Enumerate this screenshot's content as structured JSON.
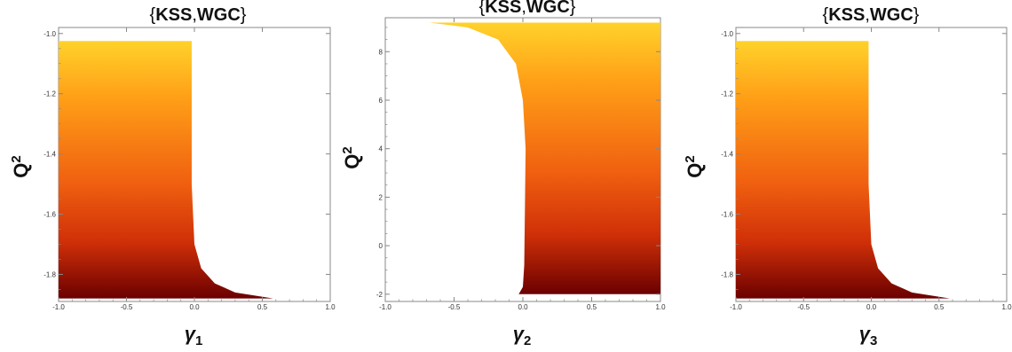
{
  "colors": {
    "top": "#ffd22a",
    "mid_upper": "#ff9f17",
    "mid": "#f06010",
    "mid_lower": "#d03008",
    "bottom": "#6b0000",
    "frame": "#888888",
    "background": "#ffffff"
  },
  "chart_data": [
    {
      "type": "area",
      "title_parts": [
        "{",
        "KSS",
        ",",
        "WGC",
        "}"
      ],
      "xlabel": "γ",
      "xlabel_sub": "1",
      "ylabel": "Q",
      "ylabel_sup": "2",
      "xlim": [
        -1.0,
        1.0
      ],
      "ylim": [
        -1.89,
        -0.98
      ],
      "xticks": [
        -1.0,
        -0.5,
        0.0,
        0.5,
        1.0
      ],
      "xtick_labels": [
        "-1.0",
        "-0.5",
        "0.0",
        "0.5",
        "1.0"
      ],
      "yticks": [
        -1.8,
        -1.6,
        -1.4,
        -1.2,
        -1.0
      ],
      "ytick_labels": [
        "-1.8",
        "-1.6",
        "-1.4",
        "-1.2",
        "-1.0"
      ],
      "y_range_filled": [
        -1.88,
        -1.025
      ],
      "x_left": -1.0,
      "right_boundary": [
        {
          "y": -1.025,
          "x": -0.02
        },
        {
          "y": -1.5,
          "x": -0.02
        },
        {
          "y": -1.7,
          "x": 0.0
        },
        {
          "y": -1.78,
          "x": 0.05
        },
        {
          "y": -1.83,
          "x": 0.15
        },
        {
          "y": -1.86,
          "x": 0.3
        },
        {
          "y": -1.88,
          "x": 0.58
        }
      ],
      "color_gradient": "y"
    },
    {
      "type": "area",
      "title_parts": [
        "{",
        "KSS",
        ",",
        "WGC",
        "}"
      ],
      "xlabel": "γ",
      "xlabel_sub": "2",
      "ylabel": "Q",
      "ylabel_sup": "2",
      "xlim": [
        -1.0,
        1.0
      ],
      "ylim": [
        -2.3,
        9.4
      ],
      "xticks": [
        -1.0,
        -0.5,
        0.0,
        0.5,
        1.0
      ],
      "xtick_labels": [
        "-1.0",
        "-0.5",
        "0.0",
        "0.5",
        "1.0"
      ],
      "yticks": [
        -2,
        0,
        2,
        4,
        6,
        8
      ],
      "ytick_labels": [
        "-2",
        "0",
        "2",
        "4",
        "6",
        "8"
      ],
      "y_range_filled": [
        -2.0,
        9.2
      ],
      "x_right": 1.0,
      "left_boundary": [
        {
          "y": -2.0,
          "x": -0.03
        },
        {
          "y": -1.7,
          "x": 0.0
        },
        {
          "y": -0.8,
          "x": 0.01
        },
        {
          "y": 4.0,
          "x": 0.02
        },
        {
          "y": 6.0,
          "x": 0.0
        },
        {
          "y": 7.5,
          "x": -0.05
        },
        {
          "y": 8.5,
          "x": -0.18
        },
        {
          "y": 9.0,
          "x": -0.4
        },
        {
          "y": 9.2,
          "x": -0.68
        }
      ],
      "color_gradient": "y"
    },
    {
      "type": "area",
      "title_parts": [
        "{",
        "KSS",
        ",",
        "WGC",
        "}"
      ],
      "xlabel": "γ",
      "xlabel_sub": "3",
      "ylabel": "Q",
      "ylabel_sup": "2",
      "xlim": [
        -1.0,
        1.0
      ],
      "ylim": [
        -1.89,
        -0.98
      ],
      "xticks": [
        -1.0,
        -0.5,
        0.0,
        0.5,
        1.0
      ],
      "xtick_labels": [
        "-1.0",
        "-0.5",
        "0.0",
        "0.5",
        "1.0"
      ],
      "yticks": [
        -1.8,
        -1.6,
        -1.4,
        -1.2,
        -1.0
      ],
      "ytick_labels": [
        "-1.8",
        "-1.6",
        "-1.4",
        "-1.2",
        "-1.0"
      ],
      "y_range_filled": [
        -1.88,
        -1.025
      ],
      "x_left": -1.0,
      "right_boundary": [
        {
          "y": -1.025,
          "x": -0.02
        },
        {
          "y": -1.5,
          "x": -0.02
        },
        {
          "y": -1.7,
          "x": 0.0
        },
        {
          "y": -1.78,
          "x": 0.05
        },
        {
          "y": -1.83,
          "x": 0.15
        },
        {
          "y": -1.86,
          "x": 0.3
        },
        {
          "y": -1.88,
          "x": 0.58
        }
      ],
      "color_gradient": "y"
    }
  ]
}
